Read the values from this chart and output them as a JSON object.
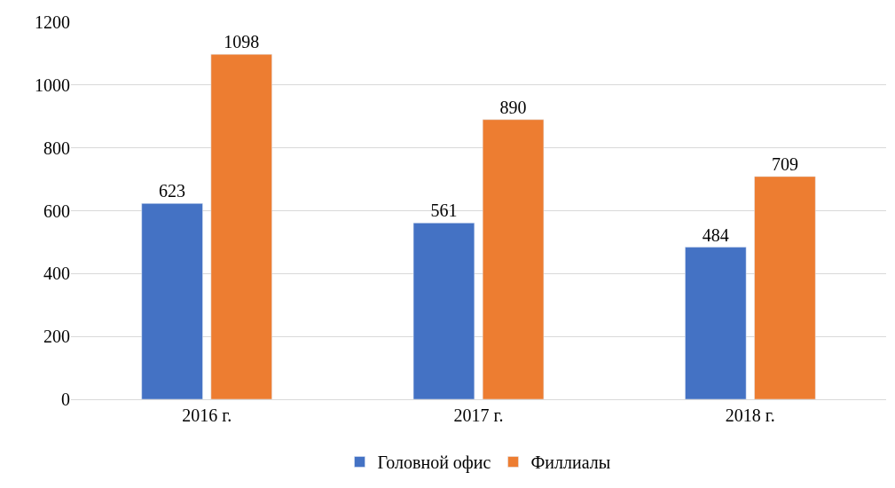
{
  "chart_data": {
    "type": "bar",
    "categories": [
      "2016 г.",
      "2017 г.",
      "2018 г."
    ],
    "series": [
      {
        "name": "Головной офис",
        "color": "#4472c4",
        "values": [
          623,
          561,
          484
        ]
      },
      {
        "name": "Филлиалы",
        "color": "#ed7d31",
        "values": [
          1098,
          890,
          709
        ]
      }
    ],
    "ylim": [
      0,
      1200
    ],
    "yticks": [
      0,
      200,
      400,
      600,
      800,
      1000,
      1200
    ],
    "grid": "y",
    "legend": "bottom",
    "data_labels": true
  }
}
